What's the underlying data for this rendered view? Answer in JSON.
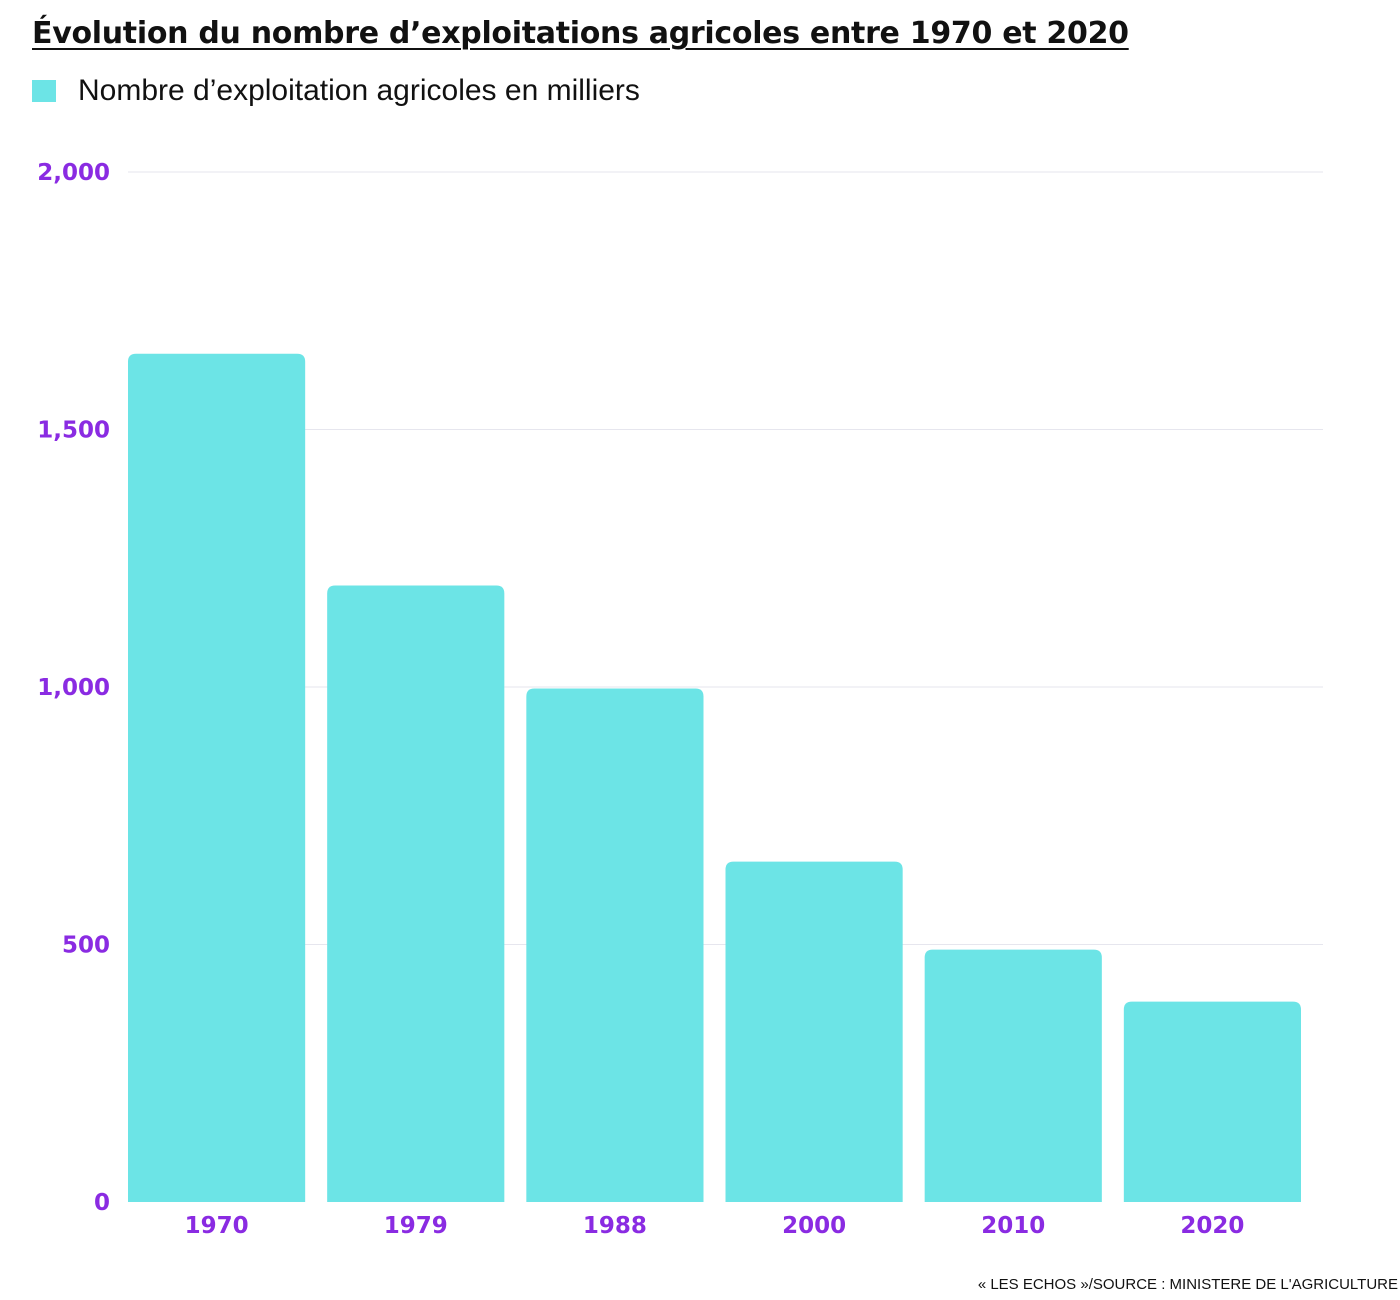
{
  "title": "Évolution du nombre d’exploitations agricoles entre 1970 et 2020",
  "source": "« LES ECHOS »/SOURCE : MINISTERE DE L'AGRICULTURE",
  "colors": {
    "bar": "#6ce4e6",
    "axis_text": "#8a2be2",
    "grid": "#e6e6ee",
    "title": "#111111"
  },
  "chart_data": {
    "type": "bar",
    "title": "Évolution du nombre d’exploitations agricoles entre 1970 et 2020",
    "xlabel": "",
    "ylabel": "",
    "categories": [
      "1970",
      "1979",
      "1988",
      "2000",
      "2010",
      "2020"
    ],
    "series": [
      {
        "name": "Nombre d’exploitation agricoles en milliers",
        "values": [
          1647,
          1197,
          997,
          661,
          490,
          389
        ]
      }
    ],
    "ylim": [
      0,
      2000
    ],
    "yticks": [
      0,
      500,
      1000,
      1500,
      2000
    ],
    "ytick_labels": [
      "0",
      "500",
      "1,000",
      "1,500",
      "2,000"
    ],
    "grid": true,
    "legend_position": "top-left"
  }
}
